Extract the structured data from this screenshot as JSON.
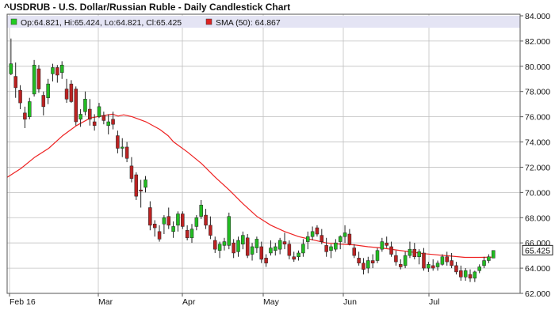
{
  "chart_data": {
    "type": "candlestick",
    "title": "^USDRUB - U.S. Dollar/Russian Ruble - Daily Candlestick Chart",
    "legend": {
      "ohlc_text": "Op:64.821, Hi:65.424, Lo:64.821, Cl:65.425",
      "ohlc_color": "#22cc22",
      "sma_text": "SMA (50): 64.867",
      "sma_color": "#dd2222"
    },
    "x_labels": [
      "Feb 16",
      "Mar",
      "Apr",
      "May",
      "Jun",
      "Jul"
    ],
    "y_ticks": [
      "84.000",
      "82.000",
      "80.000",
      "78.000",
      "76.000",
      "74.000",
      "72.000",
      "70.000",
      "68.000",
      "66.000",
      "64.000",
      "62.000"
    ],
    "ylim": [
      62,
      84
    ],
    "last_price": "65.425",
    "ylabel": "",
    "xlabel": "",
    "colors": {
      "up": "#22bb22",
      "down": "#bb2222",
      "sma": "#ee2222",
      "grid": "#c0c0c0",
      "legend_bg": "#e4e4f4"
    },
    "candles": [
      [
        1,
        79.4,
        82.2,
        79.3,
        80.2
      ],
      [
        2,
        79.2,
        80.3,
        77.5,
        78.3
      ],
      [
        3,
        78.1,
        78.5,
        76.6,
        77.1
      ],
      [
        4,
        76.3,
        76.8,
        75.1,
        75.8
      ],
      [
        5,
        76.0,
        77.5,
        75.8,
        77.2
      ],
      [
        6,
        77.8,
        80.5,
        77.6,
        80.1
      ],
      [
        7,
        79.8,
        80.1,
        77.9,
        78.2
      ],
      [
        8,
        77.7,
        78.0,
        76.1,
        76.8
      ],
      [
        9,
        77.5,
        79.0,
        77.0,
        78.6
      ],
      [
        10,
        79.4,
        80.2,
        78.8,
        79.9
      ],
      [
        11,
        79.9,
        80.1,
        78.7,
        79.3
      ],
      [
        12,
        79.5,
        80.4,
        79.0,
        80.1
      ],
      [
        13,
        78.2,
        79.0,
        77.1,
        77.4
      ],
      [
        14,
        78.6,
        78.9,
        77.1,
        77.2
      ],
      [
        15,
        78.2,
        78.4,
        75.3,
        75.6
      ],
      [
        16,
        75.8,
        76.6,
        75.2,
        76.2
      ],
      [
        17,
        76.4,
        78.0,
        76.1,
        77.4
      ],
      [
        18,
        76.6,
        77.4,
        75.3,
        75.8
      ],
      [
        19,
        75.6,
        76.2,
        74.9,
        75.3
      ],
      [
        20,
        76.0,
        77.1,
        75.9,
        76.8
      ],
      [
        21,
        76.1,
        76.4,
        75.4,
        75.7
      ],
      [
        22,
        75.3,
        76.2,
        74.6,
        75.6
      ],
      [
        23,
        75.8,
        76.4,
        75.0,
        75.4
      ],
      [
        24,
        74.5,
        74.9,
        73.1,
        73.5
      ],
      [
        25,
        73.5,
        74.3,
        72.8,
        73.6
      ],
      [
        26,
        73.6,
        74.0,
        72.4,
        72.7
      ],
      [
        27,
        72.1,
        72.8,
        70.8,
        71.1
      ],
      [
        28,
        71.4,
        71.6,
        69.4,
        69.7
      ],
      [
        29,
        70.2,
        71.0,
        68.8,
        70.1
      ],
      [
        30,
        70.4,
        71.3,
        70.0,
        71.0
      ],
      [
        31,
        68.8,
        69.3,
        67.0,
        67.4
      ],
      [
        32,
        67.5,
        67.8,
        66.5,
        67.2
      ],
      [
        33,
        66.9,
        67.4,
        66.1,
        66.3
      ],
      [
        34,
        67.5,
        68.2,
        66.7,
        68.0
      ],
      [
        35,
        68.1,
        68.8,
        67.1,
        67.4
      ],
      [
        36,
        66.9,
        67.7,
        66.4,
        67.3
      ],
      [
        37,
        67.4,
        68.5,
        66.9,
        68.3
      ],
      [
        38,
        68.3,
        68.5,
        67.1,
        67.3
      ],
      [
        39,
        67.0,
        67.4,
        66.2,
        66.4
      ],
      [
        40,
        66.4,
        67.5,
        66.0,
        67.1
      ],
      [
        41,
        67.3,
        68.2,
        67.0,
        68.0
      ],
      [
        42,
        68.1,
        69.4,
        67.9,
        69.0
      ],
      [
        43,
        68.2,
        68.7,
        67.1,
        67.4
      ],
      [
        44,
        67.4,
        68.1,
        66.3,
        66.6
      ],
      [
        45,
        66.2,
        66.5,
        65.2,
        65.5
      ],
      [
        46,
        65.4,
        66.1,
        64.8,
        65.9
      ],
      [
        47,
        65.8,
        66.4,
        65.4,
        66.1
      ],
      [
        48,
        65.8,
        68.4,
        65.5,
        68.1
      ],
      [
        49,
        66.0,
        66.3,
        64.8,
        65.2
      ],
      [
        50,
        65.3,
        66.5,
        64.9,
        66.2
      ],
      [
        51,
        65.9,
        66.9,
        65.5,
        66.6
      ],
      [
        52,
        66.4,
        66.7,
        64.8,
        65.0
      ],
      [
        53,
        65.1,
        66.0,
        64.6,
        65.7
      ],
      [
        54,
        65.6,
        66.5,
        65.2,
        66.3
      ],
      [
        55,
        65.7,
        66.1,
        64.4,
        64.7
      ],
      [
        56,
        64.8,
        65.1,
        64.1,
        64.4
      ],
      [
        57,
        65.2,
        66.2,
        65.0,
        65.6
      ],
      [
        58,
        65.4,
        66.0,
        65.0,
        65.7
      ],
      [
        59,
        65.5,
        66.4,
        65.1,
        66.2
      ],
      [
        60,
        66.1,
        66.8,
        65.5,
        65.9
      ],
      [
        61,
        65.9,
        66.2,
        64.7,
        65.0
      ],
      [
        62,
        64.9,
        65.3,
        64.5,
        64.7
      ],
      [
        63,
        64.9,
        65.4,
        64.6,
        65.2
      ],
      [
        64,
        65.2,
        66.3,
        64.9,
        65.9
      ],
      [
        65,
        66.1,
        66.9,
        65.5,
        66.5
      ],
      [
        66,
        66.5,
        67.3,
        66.2,
        66.9
      ],
      [
        67,
        67.2,
        67.4,
        66.5,
        66.7
      ],
      [
        68,
        66.6,
        67.1,
        65.9,
        66.1
      ],
      [
        69,
        65.8,
        66.4,
        64.9,
        65.3
      ],
      [
        70,
        65.4,
        65.9,
        64.8,
        65.7
      ],
      [
        71,
        65.5,
        66.3,
        65.3,
        66.0
      ],
      [
        72,
        66.1,
        66.6,
        65.5,
        66.5
      ],
      [
        73,
        66.5,
        67.4,
        66.0,
        66.8
      ],
      [
        74,
        66.7,
        67.1,
        65.8,
        65.9
      ],
      [
        75,
        65.6,
        65.9,
        64.8,
        65.0
      ],
      [
        76,
        64.8,
        65.3,
        64.2,
        64.4
      ],
      [
        77,
        64.4,
        64.8,
        63.5,
        63.9
      ],
      [
        78,
        64.0,
        64.9,
        63.6,
        64.6
      ],
      [
        79,
        64.6,
        65.1,
        64.0,
        64.4
      ],
      [
        80,
        64.6,
        65.6,
        64.4,
        65.4
      ],
      [
        81,
        65.5,
        66.4,
        65.3,
        66.1
      ],
      [
        82,
        66.0,
        66.5,
        65.6,
        65.8
      ],
      [
        83,
        65.7,
        66.1,
        64.9,
        65.1
      ],
      [
        84,
        65.0,
        65.4,
        64.2,
        64.5
      ],
      [
        85,
        64.3,
        64.7,
        63.9,
        64.1
      ],
      [
        86,
        64.2,
        65.3,
        64.0,
        65.0
      ],
      [
        87,
        65.0,
        66.1,
        64.8,
        65.5
      ],
      [
        88,
        65.5,
        66.0,
        64.7,
        64.9
      ],
      [
        89,
        64.9,
        65.5,
        64.3,
        65.3
      ],
      [
        90,
        65.2,
        65.6,
        63.8,
        64.0
      ],
      [
        91,
        64.0,
        64.5,
        63.7,
        64.3
      ],
      [
        92,
        64.2,
        64.7,
        63.8,
        64.0
      ],
      [
        93,
        64.1,
        64.6,
        63.8,
        64.4
      ],
      [
        94,
        64.3,
        65.1,
        64.2,
        64.9
      ],
      [
        95,
        64.9,
        65.3,
        64.2,
        64.5
      ],
      [
        96,
        64.6,
        65.2,
        64.0,
        64.2
      ],
      [
        97,
        64.2,
        64.5,
        63.5,
        63.7
      ],
      [
        98,
        63.8,
        64.2,
        63.0,
        63.3
      ],
      [
        99,
        63.3,
        64.0,
        63.0,
        63.8
      ],
      [
        100,
        63.5,
        63.9,
        62.9,
        63.2
      ],
      [
        101,
        63.2,
        63.8,
        62.9,
        63.7
      ],
      [
        102,
        63.8,
        64.3,
        63.6,
        64.1
      ],
      [
        103,
        64.2,
        64.9,
        64.0,
        64.6
      ],
      [
        104,
        64.6,
        65.1,
        64.4,
        64.9
      ],
      [
        105,
        64.8,
        65.4,
        64.8,
        65.4
      ]
    ],
    "sma_points": [
      [
        0,
        71.2
      ],
      [
        5,
        71.9
      ],
      [
        10,
        72.8
      ],
      [
        15,
        73.5
      ],
      [
        20,
        74.5
      ],
      [
        25,
        75.3
      ],
      [
        30,
        75.9
      ],
      [
        35,
        76.1
      ],
      [
        38,
        76.2
      ],
      [
        40,
        76.05
      ],
      [
        42,
        76.15
      ],
      [
        45,
        76.0
      ],
      [
        50,
        75.6
      ],
      [
        55,
        75.0
      ],
      [
        58,
        74.5
      ],
      [
        60,
        74.0
      ],
      [
        65,
        73.2
      ],
      [
        70,
        72.3
      ],
      [
        75,
        71.2
      ],
      [
        80,
        70.2
      ],
      [
        85,
        69.1
      ],
      [
        90,
        68.1
      ],
      [
        95,
        67.4
      ],
      [
        100,
        66.9
      ],
      [
        105,
        66.5
      ],
      [
        110,
        66.25
      ],
      [
        115,
        66.0
      ],
      [
        120,
        65.9
      ],
      [
        125,
        65.85
      ],
      [
        130,
        65.7
      ],
      [
        135,
        65.6
      ],
      [
        140,
        65.45
      ],
      [
        145,
        65.3
      ],
      [
        150,
        65.15
      ],
      [
        155,
        65.05
      ],
      [
        160,
        64.95
      ],
      [
        165,
        64.85
      ],
      [
        170,
        64.85
      ],
      [
        175,
        64.87
      ]
    ]
  }
}
